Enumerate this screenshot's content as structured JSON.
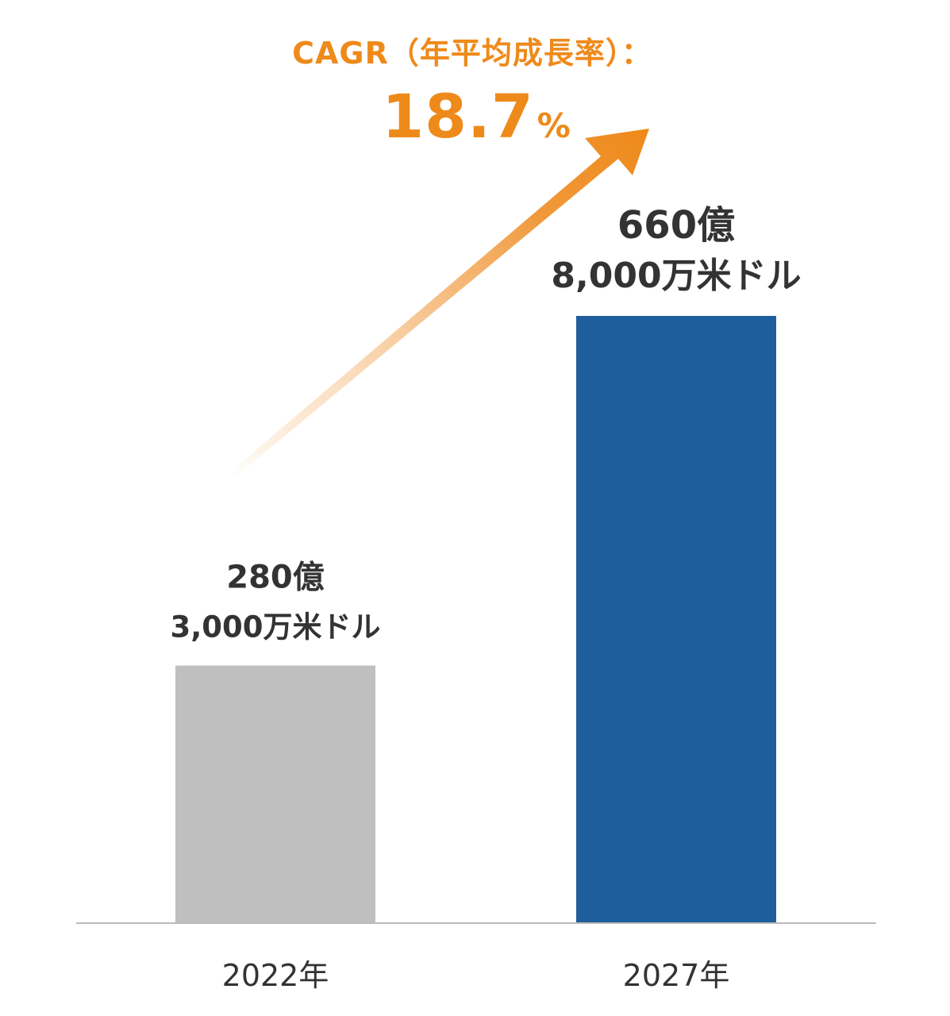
{
  "annotation": {
    "cagr_label": "CAGR（年平均成長率）：",
    "cagr_value": "18.7",
    "cagr_unit": "%"
  },
  "colors": {
    "accent": "#ee8a1a",
    "bar_2022": "#bfbfbf",
    "bar_2027": "#1f5e9c",
    "label_text": "#333333",
    "axis_line": "#bbbbbb"
  },
  "chart_data": {
    "type": "bar",
    "categories": [
      "2022年",
      "2027年"
    ],
    "values": [
      28030000000,
      66080000000
    ],
    "value_labels": [
      [
        "280億",
        "3,000万米ドル"
      ],
      [
        "660億",
        "8,000万米ドル"
      ]
    ],
    "title": "",
    "xlabel": "",
    "ylabel": "",
    "ylim": [
      0,
      66080000000
    ],
    "grid": false,
    "legend": "none"
  }
}
